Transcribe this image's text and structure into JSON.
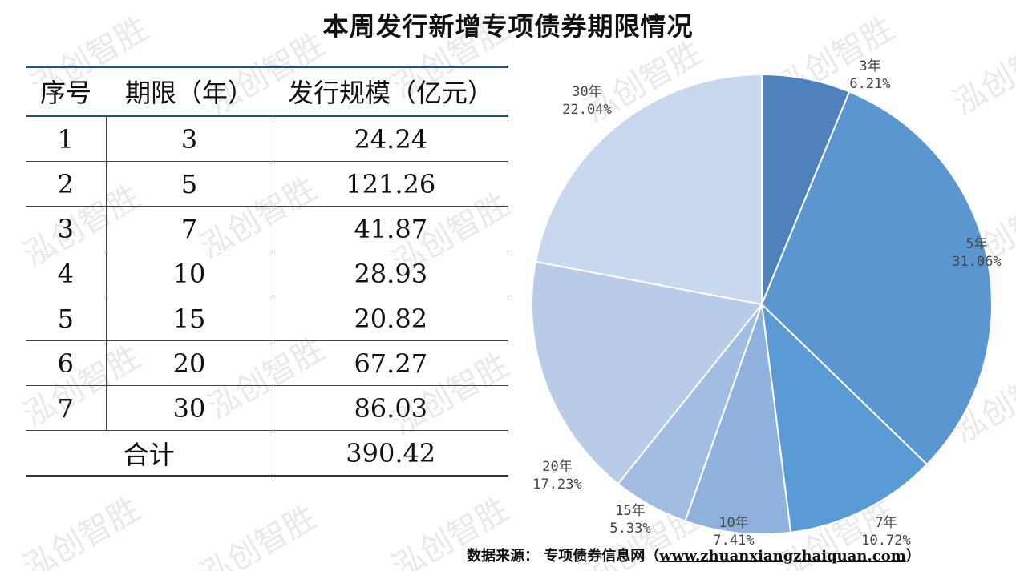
{
  "title": "本周发行新增专项债券期限情况",
  "watermark": "泓创智胜",
  "table": {
    "headers": [
      "序号",
      "期限（年）",
      "发行规模（亿元）"
    ],
    "rows": [
      [
        "1",
        "3",
        "24.24"
      ],
      [
        "2",
        "5",
        "121.26"
      ],
      [
        "3",
        "7",
        "41.87"
      ],
      [
        "4",
        "10",
        "28.93"
      ],
      [
        "5",
        "15",
        "20.82"
      ],
      [
        "6",
        "20",
        "67.27"
      ],
      [
        "7",
        "30",
        "86.03"
      ]
    ],
    "total_label": "合计",
    "total_value": "390.42"
  },
  "source": {
    "label": "数据来源：",
    "text": "专项债券信息网（",
    "url": "www.zhuanxiangzhaiquan.com",
    "close": "）"
  },
  "colors": {
    "slices": [
      "#4f81bd",
      "#5b96d0",
      "#5b9bd5",
      "#8fb1dd",
      "#a3bde2",
      "#b8cce8",
      "#c8d8ee"
    ],
    "header_rule": "#2d4f74"
  },
  "chart_data": {
    "type": "pie",
    "title": "",
    "categories": [
      "3年",
      "5年",
      "7年",
      "10年",
      "15年",
      "20年",
      "30年"
    ],
    "values": [
      24.24,
      121.26,
      41.87,
      28.93,
      20.82,
      67.27,
      86.03
    ],
    "percent_labels": [
      "6.21%",
      "31.06%",
      "10.72%",
      "7.41%",
      "5.33%",
      "17.23%",
      "22.04%"
    ],
    "start": "12 o'clock",
    "direction": "clockwise",
    "legend": "none"
  }
}
